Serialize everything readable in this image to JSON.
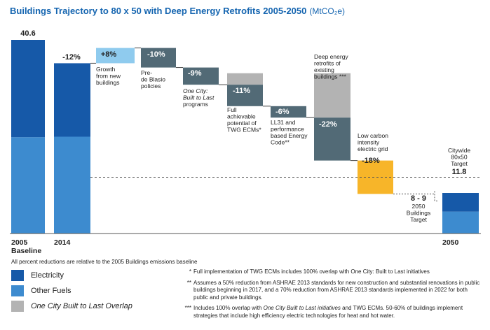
{
  "title": "Buildings Trajectory to 80 x 50 with Deep Energy Retrofits 2005-2050",
  "unit": "(MtCO₂e)",
  "colors": {
    "electricity": "#1659a8",
    "other_fuels": "#3d8bcf",
    "growth": "#8fcbee",
    "reduction": "#526a76",
    "overlap": "#b3b3b3",
    "grid": "#f7b529",
    "title": "#1565b0"
  },
  "chart_data": {
    "type": "bar",
    "subtype": "waterfall",
    "title": "Buildings Trajectory to 80 x 50 with Deep Energy Retrofits 2005-2050",
    "unit": "MtCO2e",
    "ylim": [
      0,
      40.6
    ],
    "baseline_value": 40.6,
    "reference_line": {
      "value": 11.8,
      "label": "11.8",
      "description": "Citywide 80x50 Target",
      "style": "dashed"
    },
    "bars": [
      {
        "id": "2005",
        "label": "2005",
        "sublabel": "Baseline",
        "value_label": "40.6",
        "kind": "total",
        "base": 0,
        "top": 40.6,
        "electricity": 20.4,
        "other_fuels": 20.2
      },
      {
        "id": "2014",
        "label": "2014",
        "value_label": "-12%",
        "kind": "total",
        "base": 0,
        "top": 35.7,
        "electricity": 15.4,
        "other_fuels": 20.3
      },
      {
        "id": "growth",
        "label": "Growth from new buildings",
        "value_label": "+8%",
        "kind": "increase",
        "base": 35.7,
        "top": 38.9,
        "color_key": "growth"
      },
      {
        "id": "pre_de_blasio",
        "label": "Pre-de Blasio policies",
        "value_label": "-10%",
        "kind": "decrease",
        "base": 34.8,
        "top": 38.9,
        "color_key": "reduction"
      },
      {
        "id": "one_city",
        "label": "One City: Built to Last programs",
        "value_label": "-9%",
        "kind": "decrease",
        "base": 31.2,
        "top": 34.8,
        "color_key": "reduction"
      },
      {
        "id": "twg",
        "label": "Full achievable potential of TWG ECMs*",
        "value_label": "-11%",
        "kind": "decrease",
        "base": 26.7,
        "top": 31.2,
        "overlap_top": 33.6,
        "color_key": "reduction"
      },
      {
        "id": "ll31",
        "label": "LL31 and performance based Energy Code**",
        "value_label": "-6%",
        "kind": "decrease",
        "base": 24.3,
        "top": 26.7,
        "color_key": "reduction"
      },
      {
        "id": "deep_retrofits",
        "label": "Deep energy retrofits of existing buildings ***",
        "value_label": "-22%",
        "kind": "decrease",
        "base": 15.3,
        "top": 24.3,
        "overlap_top": 33.6,
        "color_key": "reduction"
      },
      {
        "id": "low_carbon_grid",
        "label": "Low carbon intensity electric grid",
        "value_label": "-18%",
        "kind": "decrease",
        "base": 8.3,
        "top": 15.3,
        "color_key": "grid"
      },
      {
        "id": "2050",
        "label": "2050",
        "value_label": "8 - 9",
        "note": "2050 Buildings Target",
        "kind": "total",
        "base": 0,
        "top": 8.5,
        "electricity": 3.9,
        "other_fuels": 4.6
      }
    ]
  },
  "labels": {
    "baseline_value": "40.6",
    "x2005": "2005",
    "baseline": "Baseline",
    "x2014": "2014",
    "pct2014": "-12%",
    "growth_pct": "+8%",
    "growth_lbl": [
      "Growth",
      "from new",
      "buildings"
    ],
    "pre_pct": "-10%",
    "pre_lbl": [
      "Pre-",
      "de Blasio",
      "policies"
    ],
    "onecity_pct": "-9%",
    "onecity_lbl": [
      "One City:",
      "Built to Last",
      "programs"
    ],
    "twg_pct": "-11%",
    "twg_lbl": [
      "Full",
      "achievable",
      "potential of",
      "TWG ECMs*"
    ],
    "ll31_pct": "-6%",
    "ll31_lbl": [
      "LL31 and",
      "performance",
      "based Energy",
      "Code**"
    ],
    "deep_pct": "-22%",
    "deep_lbl": [
      "Deep energy",
      "retrofits of",
      "existing",
      "buildings ***"
    ],
    "grid_pct": "-18%",
    "grid_lbl": [
      "Low carbon",
      "intensity",
      "electric grid"
    ],
    "target_lbl": [
      "Citywide",
      "80x50",
      "Target"
    ],
    "target_val": "11.8",
    "b2050_val": "8 - 9",
    "b2050_lbl": [
      "2050",
      "Buildings",
      "Target"
    ],
    "x2050": "2050"
  },
  "footnote": "All percent reductions are relative to the 2005 Buildings emissions baseline",
  "legend": [
    {
      "label": "Electricity",
      "color": "#1659a8",
      "italic": false
    },
    {
      "label": "Other Fuels",
      "color": "#3d8bcf",
      "italic": false
    },
    {
      "label": "One City Built to Last Overlap",
      "color": "#b3b3b3",
      "italic": true
    }
  ],
  "notes": {
    "n1_mark": "*",
    "n1_text": "Full implementation of TWG ECMs includes 100% overlap with One City: Built to Last initiatives",
    "n2_mark": "**",
    "n2_text": "Assumes a 50% reduction from ASHRAE 2013 standards for new construction and substantial renovations in public buildings beginning in 2017, and a 70% reduction from ASHRAE 2013 standards implemented in 2022 for both public and private buildings.",
    "n3_mark": "***",
    "n3_a": "Includes 100% overlap with ",
    "n3_b": "One City Built to Last initiatives",
    "n3_c": " and TWG ECMs. 50-60% of buildings implement strategies that include high efficiency electric technologies for heat and hot water."
  }
}
